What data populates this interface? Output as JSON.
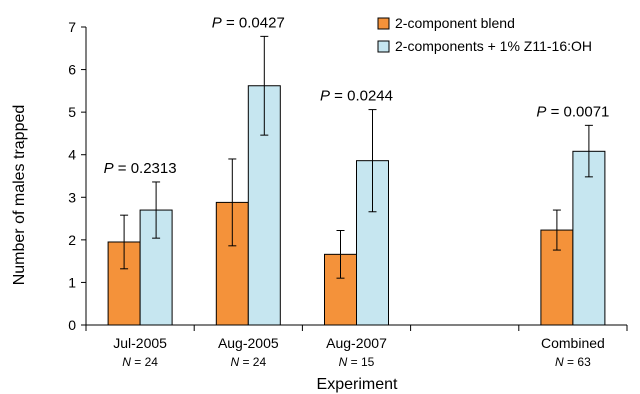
{
  "chart_data": {
    "type": "bar",
    "xlabel": "Experiment",
    "ylabel": "Number of males trapped",
    "ylim": [
      0,
      7
    ],
    "yticks": [
      0,
      1,
      2,
      3,
      4,
      5,
      6,
      7
    ],
    "legend_position": "top-right",
    "categories": [
      "Jul-2005",
      "Aug-2005",
      "Aug-2007",
      "",
      "Combined"
    ],
    "n_labels": [
      "24",
      "24",
      "15",
      "",
      "63"
    ],
    "p_values": [
      "0.2313",
      "0.0427",
      "0.0244",
      "",
      "0.0071"
    ],
    "p_prefix": "P",
    "n_prefix": "N",
    "series": [
      {
        "name": "2-component blend",
        "color": "#F4923A",
        "values": [
          1.95,
          2.88,
          1.66,
          null,
          2.23
        ],
        "err_low": [
          1.32,
          1.86,
          1.1,
          null,
          1.76
        ],
        "err_high": [
          2.58,
          3.9,
          2.22,
          null,
          2.7
        ]
      },
      {
        "name": "2-components + 1% Z11-16:OH",
        "color": "#C6E6F0",
        "values": [
          2.7,
          5.62,
          3.86,
          null,
          4.08
        ],
        "err_low": [
          2.04,
          4.46,
          2.66,
          null,
          3.48
        ],
        "err_high": [
          3.36,
          6.78,
          5.06,
          null,
          4.69
        ]
      }
    ]
  }
}
